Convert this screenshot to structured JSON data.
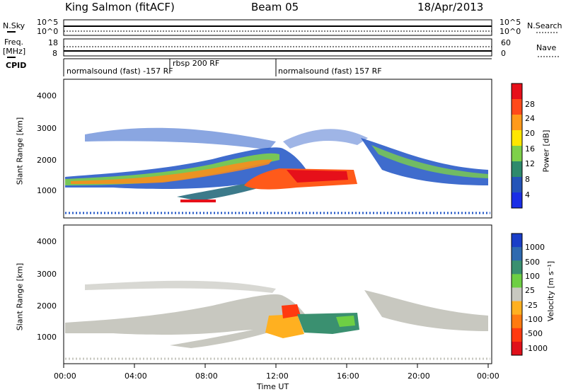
{
  "header": {
    "station": "King Salmon (fitACF)",
    "beam": "Beam 05",
    "date": "18/Apr/2013"
  },
  "strips": {
    "nsky_label": "N.Sky",
    "nsky_top_tick": "10^5",
    "nsky_bottom_tick": "10^0",
    "nsearch_label": "N.Search",
    "nsearch_top_tick": "10^5",
    "nsearch_bottom_tick": "10^0",
    "freq_label_1": "Freq.",
    "freq_label_2": "[MHz]",
    "freq_top_tick": "18",
    "freq_bottom_tick": "8",
    "nave_label": "Nave",
    "nave_top_tick": "60",
    "nave_bottom_tick": "0",
    "cpid_label": "CPID",
    "cpid_segments": [
      "normalsound (fast) -157 RF",
      "rbsp 200 RF",
      "normalsound (fast) 157 RF"
    ]
  },
  "chart_data": [
    {
      "type": "heatmap",
      "panel": "power",
      "ylabel": "Slant Range [km]",
      "y_ticks": [
        "1000",
        "2000",
        "3000",
        "4000"
      ],
      "ylim": [
        180,
        4500
      ],
      "colorbar": {
        "title": "Power [dB]",
        "ticks": [
          "4",
          "8",
          "12",
          "16",
          "20",
          "24",
          "28"
        ],
        "colors": [
          "#1a2ee6",
          "#2454b8",
          "#2e8a6c",
          "#7ed04a",
          "#ffe600",
          "#ff9a1a",
          "#ff4a1a",
          "#e6101a"
        ]
      }
    },
    {
      "type": "heatmap",
      "panel": "velocity",
      "ylabel": "Slant Range [km]",
      "y_ticks": [
        "1000",
        "2000",
        "3000",
        "4000"
      ],
      "ylim": [
        180,
        4500
      ],
      "colorbar": {
        "title": "Velocity [m s⁻¹]",
        "ticks": [
          "1000",
          "500",
          "100",
          "25",
          "-25",
          "-100",
          "-500",
          "-1000"
        ],
        "colors": [
          "#1a3ec8",
          "#2f6ab0",
          "#3a9070",
          "#6ecf44",
          "#c8c8c0",
          "#ffb020",
          "#ff7a10",
          "#ff3a10",
          "#e0101a"
        ]
      }
    }
  ],
  "time_axis": {
    "xlabel": "Time UT",
    "ticks": [
      "00:00",
      "04:00",
      "08:00",
      "12:00",
      "16:00",
      "20:00",
      "00:00"
    ]
  }
}
